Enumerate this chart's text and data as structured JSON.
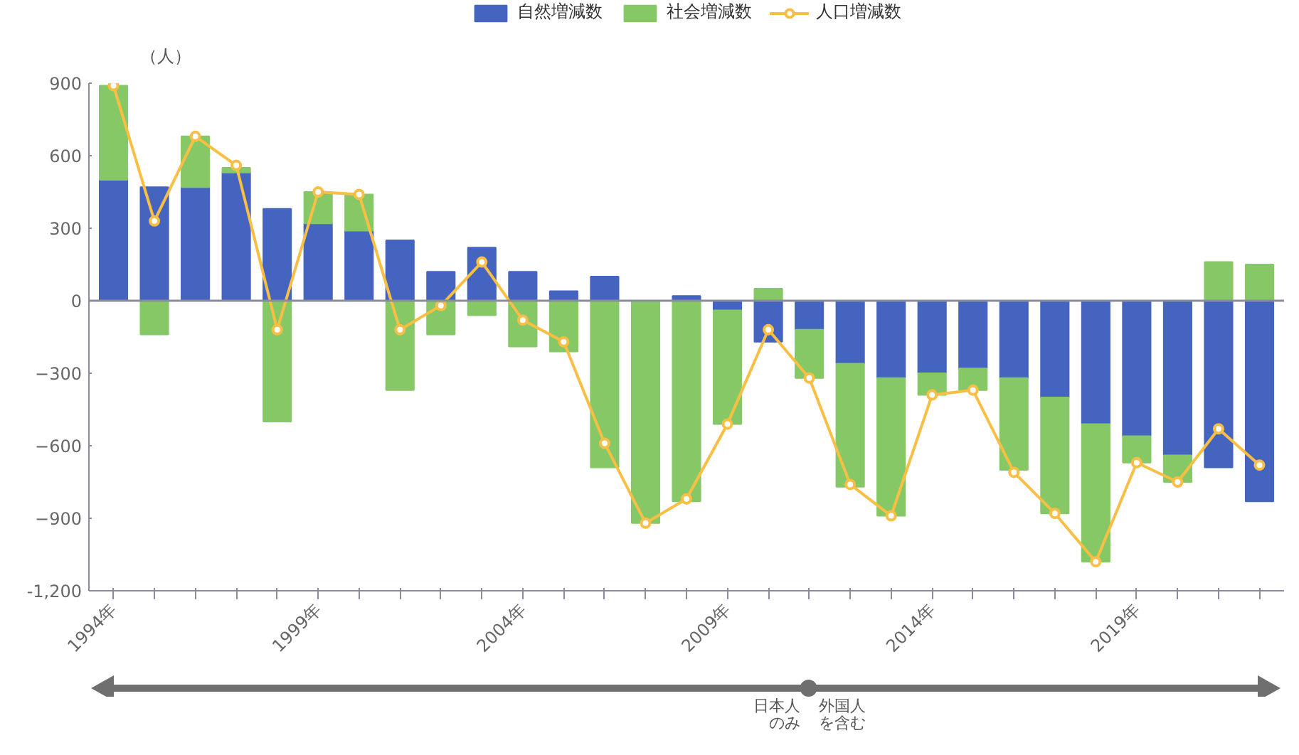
{
  "chart_data": {
    "type": "bar",
    "stacked": true,
    "ylabel": "（人）",
    "categories": [
      "1994年",
      null,
      null,
      null,
      null,
      "1999年",
      null,
      null,
      null,
      null,
      "2004年",
      null,
      null,
      null,
      null,
      "2009年",
      null,
      null,
      null,
      null,
      "2014年",
      null,
      null,
      null,
      null,
      "2019年",
      null,
      null,
      null
    ],
    "series": [
      {
        "name": "自然増減数",
        "color": "#4464bf",
        "values": [
          500,
          470,
          470,
          530,
          380,
          320,
          290,
          250,
          120,
          220,
          120,
          40,
          100,
          0,
          20,
          -40,
          -170,
          -120,
          -260,
          -320,
          -300,
          -280,
          -320,
          -400,
          -510,
          -560,
          -640,
          -690,
          -830
        ]
      },
      {
        "name": "社会増減数",
        "color": "#86c866",
        "values": [
          390,
          -140,
          210,
          20,
          -500,
          130,
          150,
          -370,
          -140,
          -60,
          -190,
          -210,
          -690,
          -920,
          -830,
          -470,
          50,
          -200,
          -510,
          -570,
          -90,
          -90,
          -380,
          -480,
          -570,
          -110,
          -110,
          160,
          150
        ]
      },
      {
        "name": "人口増減数",
        "type": "line",
        "marker": "circle",
        "color": "#f9bf45",
        "values": [
          890,
          330,
          680,
          560,
          -120,
          450,
          440,
          -120,
          -20,
          160,
          -80,
          -170,
          -590,
          -920,
          -820,
          -510,
          -120,
          -320,
          -760,
          -890,
          -390,
          -370,
          -710,
          -880,
          -1080,
          -670,
          -750,
          -530,
          -680
        ]
      }
    ],
    "ylim": [
      -1200,
      900
    ],
    "yticks": [
      900,
      600,
      300,
      0,
      -300,
      -600,
      -900,
      {
        "value": -1200,
        "label": "-1,200"
      }
    ],
    "legend": "top",
    "annotations": [
      "日本人のみ",
      "外国人を含む"
    ]
  }
}
